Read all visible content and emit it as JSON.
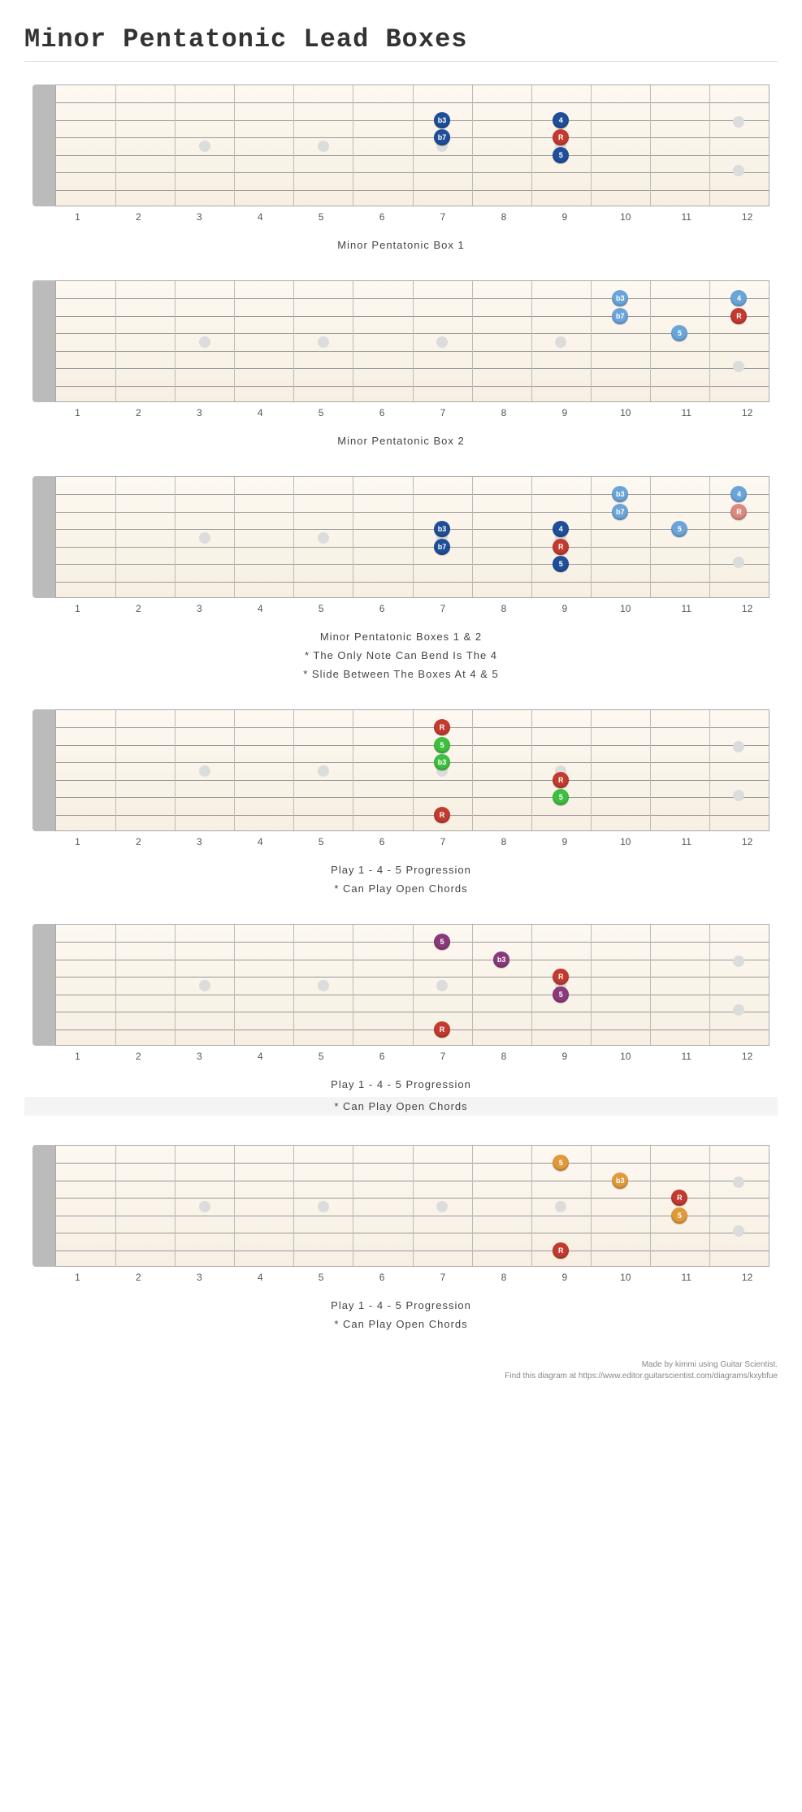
{
  "page_title": "Minor Pentatonic Lead Boxes",
  "fret_count": 12,
  "string_count": 6,
  "fretboard_height": 150,
  "fretboard_bg_top": "#fdf8f1",
  "fretboard_bg_bottom": "#f7efe2",
  "inlays_single": [
    3,
    5,
    7,
    9
  ],
  "inlays_double": [
    12
  ],
  "colors": {
    "dark_blue": "#1f4f99",
    "light_blue": "#6aa5d9",
    "red": "#c33a2f",
    "light_red": "#d9897f",
    "green": "#3fbf3f",
    "purple": "#8a3a7a",
    "orange": "#e09a3a"
  },
  "diagrams": [
    {
      "captions": [
        "Minor Pentatonic Box 1"
      ],
      "highlight_caption_index": -1,
      "notes": [
        {
          "fret": 7,
          "string": 2,
          "label": "b3",
          "color": "dark_blue"
        },
        {
          "fret": 7,
          "string": 3,
          "label": "b7",
          "color": "dark_blue"
        },
        {
          "fret": 9,
          "string": 2,
          "label": "4",
          "color": "dark_blue"
        },
        {
          "fret": 9,
          "string": 3,
          "label": "R",
          "color": "red"
        },
        {
          "fret": 9,
          "string": 4,
          "label": "5",
          "color": "dark_blue"
        }
      ]
    },
    {
      "captions": [
        "Minor Pentatonic Box 2"
      ],
      "highlight_caption_index": -1,
      "notes": [
        {
          "fret": 10,
          "string": 1,
          "label": "b3",
          "color": "light_blue"
        },
        {
          "fret": 10,
          "string": 2,
          "label": "b7",
          "color": "light_blue"
        },
        {
          "fret": 11,
          "string": 3,
          "label": "5",
          "color": "light_blue"
        },
        {
          "fret": 12,
          "string": 1,
          "label": "4",
          "color": "light_blue"
        },
        {
          "fret": 12,
          "string": 2,
          "label": "R",
          "color": "red"
        }
      ]
    },
    {
      "captions": [
        "Minor Pentatonic Boxes 1 & 2",
        "* The Only Note Can Bend Is The 4",
        "* Slide Between The Boxes At 4 & 5"
      ],
      "highlight_caption_index": -1,
      "notes": [
        {
          "fret": 7,
          "string": 3,
          "label": "b3",
          "color": "dark_blue"
        },
        {
          "fret": 7,
          "string": 4,
          "label": "b7",
          "color": "dark_blue"
        },
        {
          "fret": 9,
          "string": 3,
          "label": "4",
          "color": "dark_blue"
        },
        {
          "fret": 9,
          "string": 4,
          "label": "R",
          "color": "red"
        },
        {
          "fret": 9,
          "string": 5,
          "label": "5",
          "color": "dark_blue"
        },
        {
          "fret": 10,
          "string": 1,
          "label": "b3",
          "color": "light_blue"
        },
        {
          "fret": 10,
          "string": 2,
          "label": "b7",
          "color": "light_blue"
        },
        {
          "fret": 11,
          "string": 3,
          "label": "5",
          "color": "light_blue"
        },
        {
          "fret": 12,
          "string": 1,
          "label": "4",
          "color": "light_blue"
        },
        {
          "fret": 12,
          "string": 2,
          "label": "R",
          "color": "light_red"
        }
      ]
    },
    {
      "captions": [
        "Play 1 - 4 - 5 Progression",
        "* Can Play Open Chords"
      ],
      "highlight_caption_index": -1,
      "notes": [
        {
          "fret": 7,
          "string": 1,
          "label": "R",
          "color": "red"
        },
        {
          "fret": 7,
          "string": 2,
          "label": "5",
          "color": "green"
        },
        {
          "fret": 7,
          "string": 3,
          "label": "b3",
          "color": "green"
        },
        {
          "fret": 7,
          "string": 6,
          "label": "R",
          "color": "red"
        },
        {
          "fret": 9,
          "string": 4,
          "label": "R",
          "color": "red"
        },
        {
          "fret": 9,
          "string": 5,
          "label": "5",
          "color": "green"
        }
      ]
    },
    {
      "captions": [
        "Play 1 - 4 - 5 Progression",
        "* Can Play Open Chords"
      ],
      "highlight_caption_index": 1,
      "notes": [
        {
          "fret": 7,
          "string": 1,
          "label": "5",
          "color": "purple"
        },
        {
          "fret": 8,
          "string": 2,
          "label": "b3",
          "color": "purple"
        },
        {
          "fret": 9,
          "string": 3,
          "label": "R",
          "color": "red"
        },
        {
          "fret": 9,
          "string": 4,
          "label": "5",
          "color": "purple"
        },
        {
          "fret": 7,
          "string": 6,
          "label": "R",
          "color": "red"
        }
      ]
    },
    {
      "captions": [
        "Play 1 - 4 - 5 Progression",
        "* Can Play Open Chords"
      ],
      "highlight_caption_index": -1,
      "notes": [
        {
          "fret": 9,
          "string": 1,
          "label": "5",
          "color": "orange"
        },
        {
          "fret": 10,
          "string": 2,
          "label": "b3",
          "color": "orange"
        },
        {
          "fret": 11,
          "string": 3,
          "label": "R",
          "color": "red"
        },
        {
          "fret": 11,
          "string": 4,
          "label": "5",
          "color": "orange"
        },
        {
          "fret": 9,
          "string": 6,
          "label": "R",
          "color": "red"
        }
      ]
    }
  ],
  "footer": {
    "line1": "Made by kimmi using Guitar Scientist.",
    "line2": "Find this diagram at https://www.editor.guitarscientist.com/diagrams/kxybfue"
  }
}
